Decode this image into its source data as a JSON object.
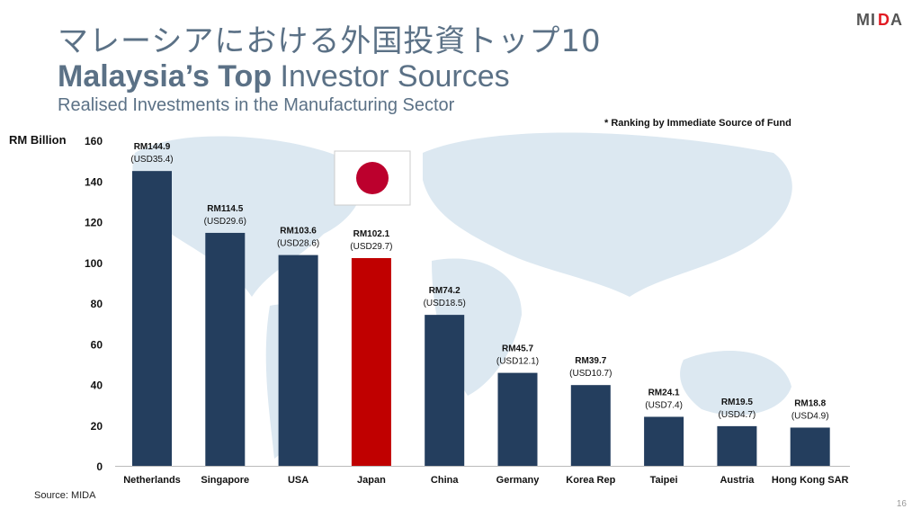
{
  "header": {
    "title_jp": "マレーシアにおける外国投資トップ10",
    "title_en_bold": "Malaysia’s Top",
    "title_en_light": " Investor Sources",
    "subtitle": "Realised Investments in the Manufacturing Sector",
    "logo": "MIDA"
  },
  "note": "* Ranking by Immediate Source of Fund",
  "footer": {
    "source": "Source: MIDA",
    "page_number": "16"
  },
  "colors": {
    "bar": "#243e5e",
    "highlight": "#c00000",
    "title": "#5b7186",
    "map": "#dce8f1"
  },
  "chart_data": {
    "type": "bar",
    "ylabel": "RM Billion",
    "ylim": [
      0,
      160
    ],
    "yticks": [
      0,
      20,
      40,
      60,
      80,
      100,
      120,
      140,
      160
    ],
    "categories": [
      "Netherlands",
      "Singapore",
      "USA",
      "Japan",
      "China",
      "Germany",
      "Korea Rep",
      "Taipei",
      "Austria",
      "Hong Kong SAR"
    ],
    "values": [
      144.9,
      114.5,
      103.6,
      102.1,
      74.2,
      45.7,
      39.7,
      24.1,
      19.5,
      18.8
    ],
    "labels_rm": [
      "RM144.9",
      "RM114.5",
      "RM103.6",
      "RM102.1",
      "RM74.2",
      "RM45.7",
      "RM39.7",
      "RM24.1",
      "RM19.5",
      "RM18.8"
    ],
    "labels_usd": [
      "(USD35.4)",
      "(USD29.6)",
      "(USD28.6)",
      "(USD29.7)",
      "(USD18.5)",
      "(USD12.1)",
      "(USD10.7)",
      "(USD7.4)",
      "(USD4.7)",
      "(USD4.9)"
    ],
    "highlight": "Japan",
    "grid": false
  }
}
